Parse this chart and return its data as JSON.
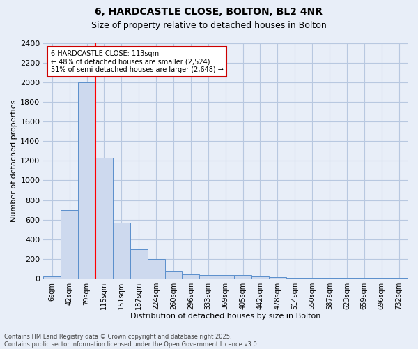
{
  "title_line1": "6, HARDCASTLE CLOSE, BOLTON, BL2 4NR",
  "title_line2": "Size of property relative to detached houses in Bolton",
  "xlabel": "Distribution of detached houses by size in Bolton",
  "ylabel": "Number of detached properties",
  "footer_line1": "Contains HM Land Registry data © Crown copyright and database right 2025.",
  "footer_line2": "Contains public sector information licensed under the Open Government Licence v3.0.",
  "bin_labels": [
    "6sqm",
    "42sqm",
    "79sqm",
    "115sqm",
    "151sqm",
    "187sqm",
    "224sqm",
    "260sqm",
    "296sqm",
    "333sqm",
    "369sqm",
    "405sqm",
    "442sqm",
    "478sqm",
    "514sqm",
    "550sqm",
    "587sqm",
    "623sqm",
    "659sqm",
    "696sqm",
    "732sqm"
  ],
  "bar_heights": [
    20,
    700,
    2000,
    1230,
    570,
    300,
    200,
    80,
    40,
    35,
    35,
    35,
    20,
    15,
    10,
    10,
    5,
    5,
    5,
    5,
    5
  ],
  "bar_color": "#cdd9ee",
  "bar_edge_color": "#5b8fcc",
  "grid_color": "#b8c8e0",
  "bg_color": "#e8eef8",
  "red_line_bin_idx": 2,
  "annotation_text_line1": "6 HARDCASTLE CLOSE: 113sqm",
  "annotation_text_line2": "← 48% of detached houses are smaller (2,524)",
  "annotation_text_line3": "51% of semi-detached houses are larger (2,648) →",
  "annotation_box_color": "#cc0000",
  "ylim": [
    0,
    2400
  ],
  "yticks": [
    0,
    200,
    400,
    600,
    800,
    1000,
    1200,
    1400,
    1600,
    1800,
    2000,
    2200,
    2400
  ],
  "title_fontsize": 10,
  "subtitle_fontsize": 9,
  "ylabel_fontsize": 8,
  "xlabel_fontsize": 8,
  "tick_fontsize": 7,
  "footer_fontsize": 6
}
